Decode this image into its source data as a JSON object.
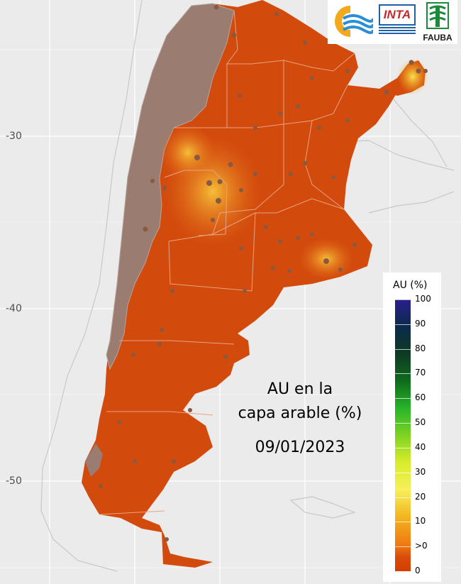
{
  "map": {
    "y_ticks": [
      "-30",
      "-40",
      "-50"
    ],
    "latitude_grid": [
      -30,
      -40,
      -50
    ],
    "colors": {
      "background": "#ebebeb",
      "country_fill": "#d24a0c",
      "andes_mask": "#9b7c70",
      "neighbor_outline": "#cfcfcf",
      "province_border": "#e2a080",
      "station_point": "#8a5a40",
      "hotspot": "#f6c23a"
    }
  },
  "overlay": {
    "line1": "AU en la",
    "line2": "capa arable (%)",
    "date": "09/01/2023"
  },
  "legend": {
    "title": "AU (%)",
    "labels": [
      "100",
      "90",
      "80",
      "70",
      "60",
      "50",
      "40",
      "30",
      "20",
      "10",
      ">0",
      "0"
    ],
    "colors": [
      "#2a1f8f",
      "#0b2a4a",
      "#0e3a24",
      "#0f6b1c",
      "#27b42a",
      "#7ed321",
      "#d9ec2a",
      "#f6f05a",
      "#f3b51f",
      "#ef7a12",
      "#d84b0a",
      "#d43e00"
    ]
  },
  "logos": {
    "inta": "INTA",
    "fauba": "FAUBA",
    "left_logo_icon": "wave-circle-logo-icon"
  }
}
